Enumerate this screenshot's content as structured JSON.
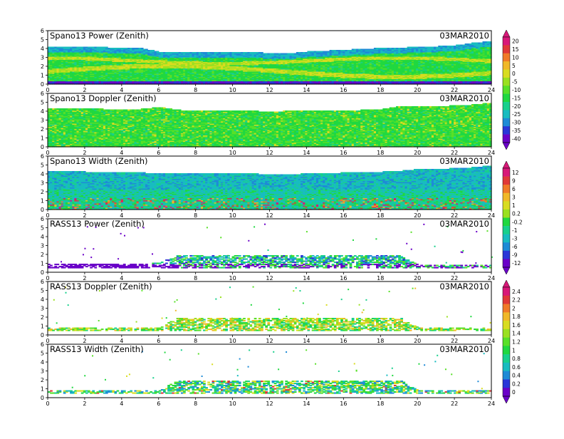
{
  "chart_data": [
    {
      "type": "heatmap",
      "title": "Spano13 Power (Zenith)",
      "date": "03MAR2010",
      "xlim": [
        0,
        24
      ],
      "ylim": [
        0,
        6
      ],
      "xticks": [
        "0",
        "2",
        "4",
        "6",
        "8",
        "10",
        "12",
        "14",
        "16",
        "18",
        "20",
        "22",
        "24"
      ],
      "yticks": [
        "0",
        "1",
        "2",
        "3",
        "4",
        "5",
        "6"
      ],
      "top_height": [
        4.2,
        4.2,
        4.2,
        4.1,
        4.0,
        4.0,
        3.6,
        3.6,
        3.6,
        3.6,
        3.6,
        3.6,
        3.4,
        3.4,
        3.6,
        3.7,
        3.8,
        3.9,
        4.0,
        4.0,
        4.2,
        4.2,
        4.3,
        4.6,
        4.8
      ]
    },
    {
      "type": "heatmap",
      "title": "Spano13 Doppler (Zenith)",
      "date": "03MAR2010",
      "xlim": [
        0,
        24
      ],
      "ylim": [
        0,
        6
      ],
      "xticks": [
        "0",
        "2",
        "4",
        "6",
        "8",
        "10",
        "12",
        "14",
        "16",
        "18",
        "20",
        "22",
        "24"
      ],
      "yticks": [
        "0",
        "1",
        "2",
        "3",
        "4",
        "5",
        "6"
      ],
      "top_height": [
        4.3,
        4.3,
        4.3,
        4.2,
        4.2,
        4.2,
        4.4,
        4.1,
        4.0,
        4.0,
        4.0,
        4.0,
        3.9,
        4.0,
        4.0,
        4.0,
        4.0,
        4.1,
        4.2,
        4.5,
        4.5,
        4.5,
        4.6,
        4.7,
        4.9
      ]
    },
    {
      "type": "heatmap",
      "title": "Spano13 Width (Zenith)",
      "date": "03MAR2010",
      "xlim": [
        0,
        24
      ],
      "ylim": [
        0,
        6
      ],
      "xticks": [
        "0",
        "2",
        "4",
        "6",
        "8",
        "10",
        "12",
        "14",
        "16",
        "18",
        "20",
        "22",
        "24"
      ],
      "yticks": [
        "0",
        "1",
        "2",
        "3",
        "4",
        "5",
        "6"
      ],
      "top_height": [
        4.3,
        4.3,
        4.2,
        4.1,
        4.1,
        4.1,
        4.0,
        4.0,
        4.0,
        4.0,
        4.0,
        4.0,
        3.9,
        3.9,
        4.0,
        4.0,
        4.1,
        4.1,
        4.2,
        4.3,
        4.5,
        4.5,
        4.6,
        4.7,
        4.9
      ]
    },
    {
      "type": "heatmap",
      "title": "RASS13 Power (Zenith)",
      "date": "03MAR2010",
      "xlim": [
        0,
        24
      ],
      "ylim": [
        0,
        6
      ],
      "xticks": [
        "0",
        "2",
        "4",
        "6",
        "8",
        "10",
        "12",
        "14",
        "16",
        "18",
        "20",
        "22",
        "24"
      ],
      "yticks": [
        "0",
        "1",
        "2",
        "3",
        "4",
        "5",
        "6"
      ],
      "top_height": [
        0.9,
        0.9,
        0.9,
        0.9,
        0.9,
        0.9,
        1.0,
        1.9,
        1.9,
        1.9,
        1.9,
        1.9,
        1.9,
        1.9,
        1.9,
        1.9,
        1.9,
        1.9,
        1.9,
        1.9,
        0.8,
        0.8,
        0.8,
        0.8,
        0.8
      ]
    },
    {
      "type": "heatmap",
      "title": "RASS13 Doppler (Zenith)",
      "date": "03MAR2010",
      "xlim": [
        0,
        24
      ],
      "ylim": [
        0,
        6
      ],
      "xticks": [
        "0",
        "2",
        "4",
        "6",
        "8",
        "10",
        "12",
        "14",
        "16",
        "18",
        "20",
        "22",
        "24"
      ],
      "yticks": [
        "0",
        "1",
        "2",
        "3",
        "4",
        "5",
        "6"
      ],
      "top_height": [
        0.8,
        0.8,
        0.8,
        0.8,
        0.8,
        0.8,
        0.8,
        1.9,
        1.9,
        1.9,
        1.9,
        1.9,
        1.9,
        1.9,
        1.9,
        1.9,
        1.9,
        1.9,
        1.9,
        1.9,
        0.8,
        0.8,
        0.8,
        0.8,
        0.8
      ]
    },
    {
      "type": "heatmap",
      "title": "RASS13 Width (Zenith)",
      "date": "03MAR2010",
      "xlim": [
        0,
        24
      ],
      "ylim": [
        0,
        6
      ],
      "xticks": [
        "0",
        "2",
        "4",
        "6",
        "8",
        "10",
        "12",
        "14",
        "16",
        "18",
        "20",
        "22",
        "24"
      ],
      "yticks": [
        "0",
        "1",
        "2",
        "3",
        "4",
        "5",
        "6"
      ],
      "top_height": [
        0.8,
        0.8,
        0.8,
        0.8,
        0.8,
        0.8,
        0.8,
        1.9,
        1.9,
        1.9,
        1.9,
        1.9,
        1.9,
        1.9,
        1.9,
        1.9,
        1.9,
        1.9,
        1.9,
        1.9,
        0.8,
        0.8,
        0.8,
        0.8,
        0.8
      ]
    }
  ],
  "colorbars": [
    {
      "labels": [
        "20",
        "15",
        "10",
        "5",
        "0",
        "-5",
        "-10",
        "-15",
        "-20",
        "-25",
        "-30",
        "-35",
        "-40"
      ]
    },
    {
      "labels": [
        "12",
        "9",
        "6",
        "3",
        "1",
        "0.2",
        "-0.2",
        "-1",
        "-3",
        "-6",
        "-9",
        "-12"
      ]
    },
    {
      "labels": [
        "2.4",
        "2.2",
        "2",
        "1.8",
        "1.6",
        "1.4",
        "1.2",
        "1",
        "0.8",
        "0.6",
        "0.4",
        "0.2",
        "0"
      ]
    }
  ],
  "colors": {
    "scale": [
      "#6a00c8",
      "#2a36d8",
      "#1e8bd6",
      "#18bcc0",
      "#18d08c",
      "#20d840",
      "#58e028",
      "#9ae020",
      "#d8dc20",
      "#f0b828",
      "#f07a28",
      "#e03838",
      "#d81878"
    ]
  }
}
